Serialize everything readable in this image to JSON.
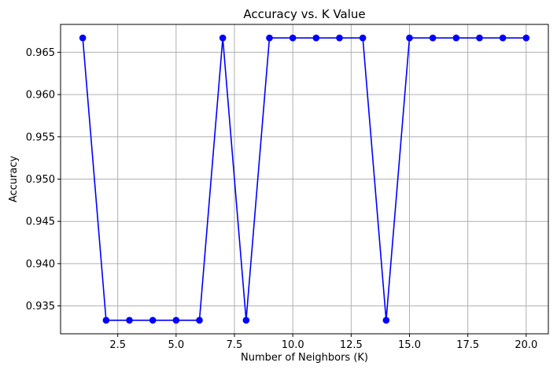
{
  "chart_data": {
    "type": "line",
    "title": "Accuracy vs. K Value",
    "xlabel": "Number of Neighbors (K)",
    "ylabel": "Accuracy",
    "grid": true,
    "xlim": [
      0.05,
      20.95
    ],
    "ylim": [
      0.9317,
      0.9683
    ],
    "xticks": [
      2.5,
      5.0,
      7.5,
      10.0,
      12.5,
      15.0,
      17.5,
      20.0
    ],
    "xtick_labels": [
      "2.5",
      "5.0",
      "7.5",
      "10.0",
      "12.5",
      "15.0",
      "17.5",
      "20.0"
    ],
    "yticks": [
      0.935,
      0.94,
      0.945,
      0.95,
      0.955,
      0.96,
      0.965
    ],
    "ytick_labels": [
      "0.935",
      "0.940",
      "0.945",
      "0.950",
      "0.955",
      "0.960",
      "0.965"
    ],
    "series": [
      {
        "color": "#0000ff",
        "marker": "circle",
        "x": [
          1,
          2,
          3,
          4,
          5,
          6,
          7,
          8,
          9,
          10,
          11,
          12,
          13,
          14,
          15,
          16,
          17,
          18,
          19,
          20
        ],
        "y": [
          0.9667,
          0.9333,
          0.9333,
          0.9333,
          0.9333,
          0.9333,
          0.9667,
          0.9333,
          0.9667,
          0.9667,
          0.9667,
          0.9667,
          0.9667,
          0.9333,
          0.9667,
          0.9667,
          0.9667,
          0.9667,
          0.9667,
          0.9667
        ]
      }
    ]
  }
}
